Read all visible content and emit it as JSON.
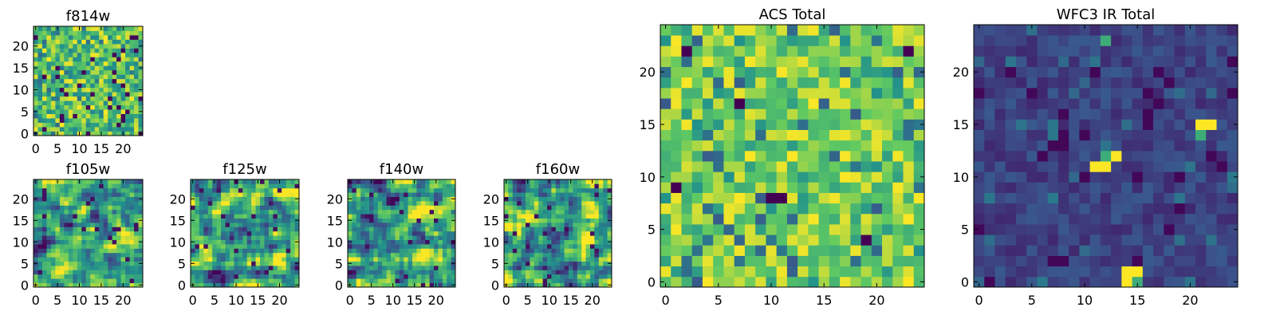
{
  "figure": {
    "background": "#ffffff",
    "colormap": "viridis",
    "palette": [
      "#440154",
      "#3b528b",
      "#21918c",
      "#5ec962",
      "#fde725"
    ]
  },
  "chart_data": [
    {
      "id": "f814w",
      "type": "heatmap",
      "title": "f814w",
      "grid_size": 25,
      "xlim": [
        0,
        24
      ],
      "ylim": [
        0,
        24
      ],
      "xticks": [
        0,
        5,
        10,
        15,
        20
      ],
      "yticks": [
        0,
        5,
        10,
        15,
        20
      ],
      "value_range": [
        0,
        1
      ],
      "seed": 814,
      "value_profile": "mostly-green-yellow with scattered dark pixels"
    },
    {
      "id": "f105w",
      "type": "heatmap",
      "title": "f105w",
      "grid_size": 25,
      "xlim": [
        0,
        24
      ],
      "ylim": [
        0,
        24
      ],
      "xticks": [
        0,
        5,
        10,
        15,
        20
      ],
      "yticks": [
        0,
        5,
        10,
        15,
        20
      ],
      "value_range": [
        0,
        1
      ],
      "seed": 105,
      "value_profile": "green-yellow, smooth texture"
    },
    {
      "id": "f125w",
      "type": "heatmap",
      "title": "f125w",
      "grid_size": 25,
      "xlim": [
        0,
        24
      ],
      "ylim": [
        0,
        24
      ],
      "xticks": [
        0,
        5,
        10,
        15,
        20
      ],
      "yticks": [
        0,
        5,
        10,
        15,
        20
      ],
      "value_range": [
        0,
        1
      ],
      "seed": 125,
      "value_profile": "green-yellow, smooth texture"
    },
    {
      "id": "f140w",
      "type": "heatmap",
      "title": "f140w",
      "grid_size": 25,
      "xlim": [
        0,
        24
      ],
      "ylim": [
        0,
        24
      ],
      "xticks": [
        0,
        5,
        10,
        15,
        20
      ],
      "yticks": [
        0,
        5,
        10,
        15,
        20
      ],
      "value_range": [
        0,
        1
      ],
      "seed": 140,
      "value_profile": "green-yellow, smooth texture"
    },
    {
      "id": "f160w",
      "type": "heatmap",
      "title": "f160w",
      "grid_size": 25,
      "xlim": [
        0,
        24
      ],
      "ylim": [
        0,
        24
      ],
      "xticks": [
        0,
        5,
        10,
        15,
        20
      ],
      "yticks": [
        0,
        5,
        10,
        15,
        20
      ],
      "value_range": [
        0,
        1
      ],
      "seed": 160,
      "value_profile": "green-yellow, smooth texture"
    },
    {
      "id": "acs-total",
      "type": "heatmap",
      "title": "ACS Total",
      "grid_size": 25,
      "xlim": [
        0,
        24
      ],
      "ylim": [
        0,
        24
      ],
      "xticks": [
        0,
        5,
        10,
        15,
        20
      ],
      "yticks": [
        0,
        5,
        10,
        15,
        20
      ],
      "value_range": [
        0,
        1
      ],
      "seed": 7,
      "value_profile": "mostly bright green-yellow, few dark pixels",
      "notable_low_cells": [
        [
          1,
          9
        ],
        [
          7,
          17
        ],
        [
          10,
          8
        ],
        [
          11,
          8
        ],
        [
          19,
          4
        ],
        [
          23,
          22
        ],
        [
          2,
          22
        ]
      ]
    },
    {
      "id": "wfc3-ir-total",
      "type": "heatmap",
      "title": "WFC3 IR Total",
      "grid_size": 25,
      "xlim": [
        0,
        24
      ],
      "ylim": [
        0,
        24
      ],
      "xticks": [
        0,
        5,
        10,
        15,
        20
      ],
      "yticks": [
        0,
        5,
        10,
        15,
        20
      ],
      "value_range": [
        0,
        1
      ],
      "seed": 31,
      "value_profile": "mostly dark blue-purple with a few bright spots",
      "notable_high_cells": [
        [
          11,
          11
        ],
        [
          12,
          11
        ],
        [
          12,
          12
        ],
        [
          13,
          12
        ],
        [
          14,
          0
        ],
        [
          15,
          0
        ],
        [
          14,
          1
        ],
        [
          15,
          1
        ],
        [
          12,
          23
        ],
        [
          21,
          15
        ],
        [
          22,
          15
        ],
        [
          21,
          14
        ]
      ]
    }
  ]
}
